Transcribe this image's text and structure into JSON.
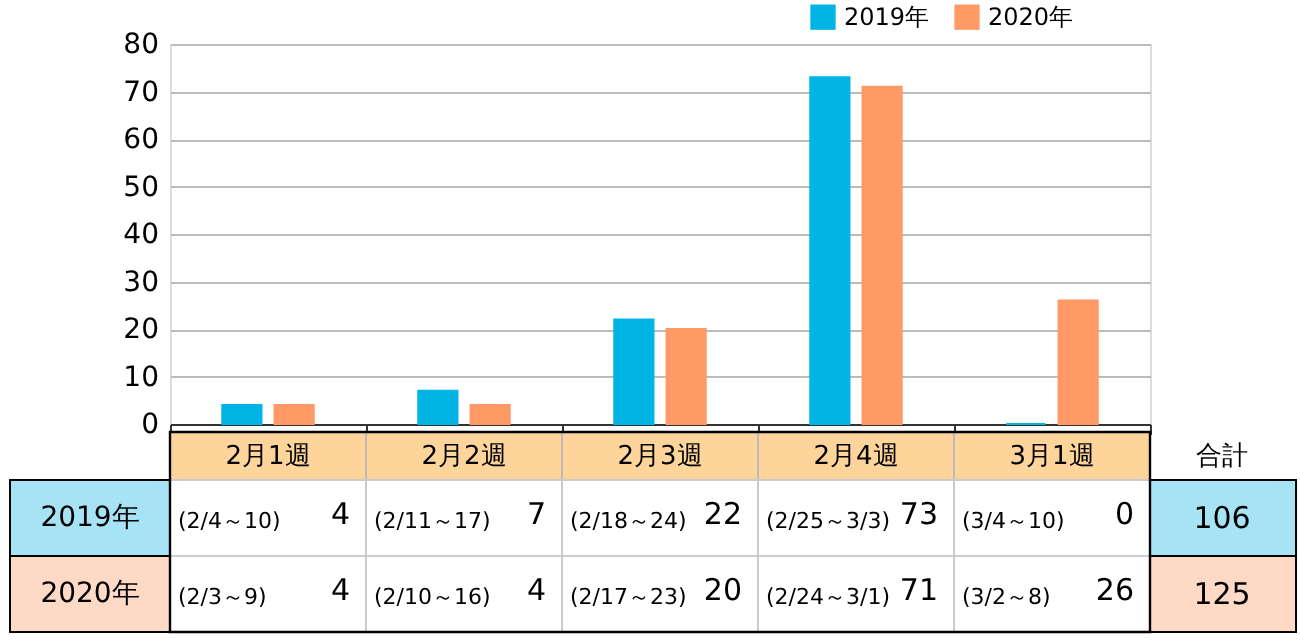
{
  "chart_data": {
    "type": "bar",
    "categories": [
      "2月1週",
      "2月2週",
      "2月3週",
      "2月4週",
      "3月1週"
    ],
    "series": [
      {
        "name": "2019年",
        "color": "#00b4e6",
        "values": [
          4,
          7,
          22,
          73,
          0
        ]
      },
      {
        "name": "2020年",
        "color": "#ff9966",
        "values": [
          4,
          4,
          20,
          71,
          26
        ]
      }
    ],
    "ylim": [
      0,
      80
    ],
    "yticks": [
      0,
      10,
      20,
      30,
      40,
      50,
      60,
      70,
      80
    ],
    "grid": "y",
    "legend": "top right",
    "data_labels": true,
    "annotations": [
      "合計",
      "106",
      "125",
      "(2/4～10)",
      "(2/11～17)",
      "(2/18～24)",
      "(2/25～3/3)",
      "(3/4～10)",
      "(2/3～9)",
      "(2/10～16)",
      "(2/17～23)",
      "(2/24～3/1)",
      "(3/2～8)"
    ]
  }
}
